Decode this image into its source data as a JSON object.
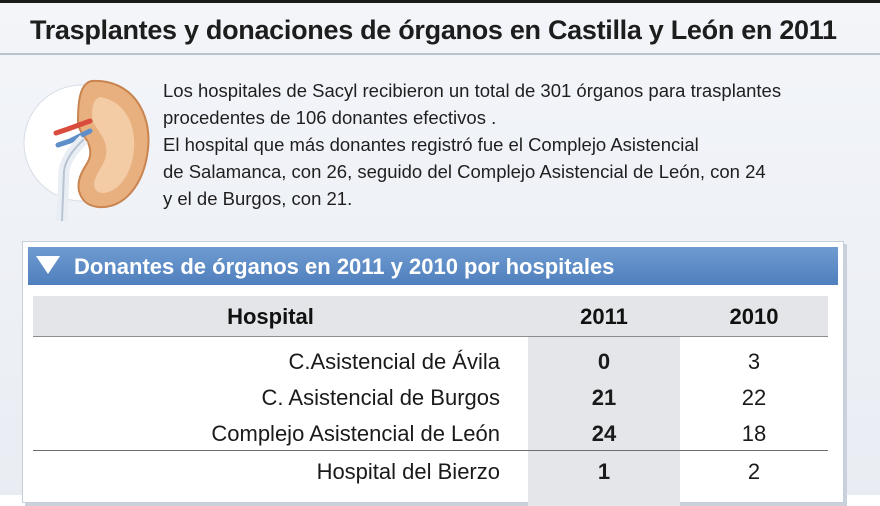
{
  "title": "Trasplantes y donaciones de órganos en Castilla y León en 2011",
  "info_lines": [
    "Los hospitales de Sacyl recibieron un total de 301 órganos para trasplantes",
    "procedentes de 106 donantes efectivos .",
    "El hospital que más donantes registró fue el Complejo Asistencial",
    "de Salamanca, con 26, seguido del Complejo Asistencial de León, con 24",
    " y el de Burgos, con 21."
  ],
  "section": {
    "label": "Donantes de órganos en 2011 y 2010 por hospitales",
    "icon": "triangle-down-icon"
  },
  "table": {
    "headers": [
      "Hospital",
      "2011",
      "2010"
    ],
    "rows": [
      {
        "hospital": "C.Asistencial de Ávila",
        "v2011": "0",
        "v2010": "3"
      },
      {
        "hospital": "C. Asistencial de Burgos",
        "v2011": "21",
        "v2010": "22"
      },
      {
        "hospital": "Complejo Asistencial de León",
        "v2011": "24",
        "v2010": "18"
      },
      {
        "hospital": "Hospital del Bierzo",
        "v2011": "1",
        "v2010": "2"
      }
    ]
  },
  "colors": {
    "section_bar": "#5a87c2",
    "header_bg": "#e3e5e8",
    "panel_bg": "#eef1f6"
  }
}
